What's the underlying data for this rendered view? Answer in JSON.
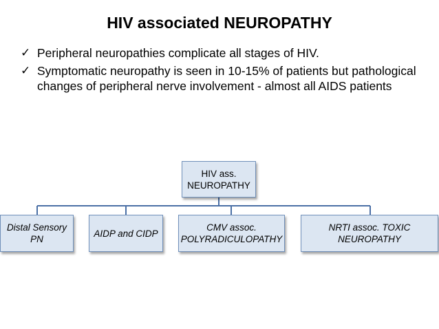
{
  "title": "HIV associated NEUROPATHY",
  "bullets": [
    "Peripheral neuropathies complicate all stages of HIV.",
    "Symptomatic neuropathy is seen in 10-15% of patients but pathological changes of peripheral nerve involvement  - almost all AIDS patients"
  ],
  "check_glyph": "✓",
  "diagram": {
    "root": {
      "line1": "HIV ass.",
      "line2": "NEUROPATHY"
    },
    "children": [
      {
        "line1": "Distal Sensory",
        "line2": "PN"
      },
      {
        "line1": "AIDP and CIDP",
        "line2": ""
      },
      {
        "line1": "CMV assoc.",
        "line2": "POLYRADICULOPATHY"
      },
      {
        "line1": "NRTI assoc. TOXIC",
        "line2": "NEUROPATHY"
      }
    ],
    "box_fill": "#dce6f2",
    "box_border": "#6f8fb9",
    "connector_color": "#4a6fa5"
  }
}
